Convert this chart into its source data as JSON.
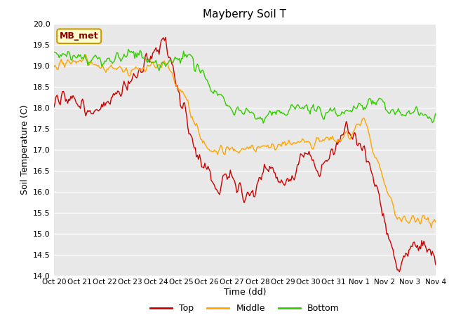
{
  "title": "Mayberry Soil T",
  "xlabel": "Time (dd)",
  "ylabel": "Soil Temperature (C)",
  "ylim": [
    14.0,
    20.0
  ],
  "yticks": [
    14.0,
    14.5,
    15.0,
    15.5,
    16.0,
    16.5,
    17.0,
    17.5,
    18.0,
    18.5,
    19.0,
    19.5,
    20.0
  ],
  "xtick_labels": [
    "Oct 20",
    "Oct 21",
    "Oct 22",
    "Oct 23",
    "Oct 24",
    "Oct 25",
    "Oct 26",
    "Oct 27",
    "Oct 28",
    "Oct 29",
    "Oct 30",
    "Oct 31",
    "Nov 1",
    "Nov 2",
    "Nov 3",
    "Nov 4"
  ],
  "colors": {
    "top": "#cc0000",
    "middle": "#ffa500",
    "bottom": "#33cc00"
  },
  "legend_label": "MB_met",
  "legend_box_facecolor": "#ffffcc",
  "legend_box_edgecolor": "#cc9900",
  "fig_facecolor": "#ffffff",
  "plot_facecolor": "#e8e8e8",
  "grid_color": "#ffffff",
  "series_names": [
    "Top",
    "Middle",
    "Bottom"
  ],
  "n_points": 360
}
